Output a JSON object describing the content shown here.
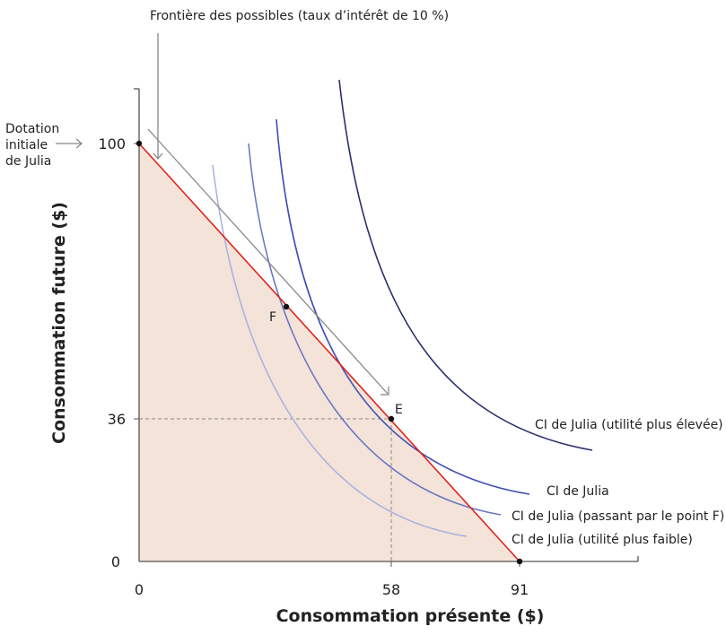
{
  "annotations": {
    "frontier": "Frontière des possibles (taux d’intérêt de 10 %)",
    "endowment": [
      "Dotation",
      "initiale",
      "de Julia"
    ],
    "point_f": "F",
    "point_e": "E",
    "ic_high": "CI de Julia (utilité plus élevée)",
    "ic_tangent": "CI de Julia",
    "ic_f": "CI de Julia (passant par le point F)",
    "ic_low": "CI de Julia (utilité plus faible)"
  },
  "axes": {
    "x_label": "Consommation présente ($)",
    "y_label": "Consommation future ($)",
    "x_ticks": [
      "0",
      "58",
      "91"
    ],
    "y_ticks": [
      "0",
      "36",
      "100"
    ]
  },
  "colors": {
    "budget_line": "#e0241b",
    "feasible_fill": "#f3e3d9",
    "ic_low": "#a6b0e0",
    "ic_f": "#6674c4",
    "ic_tangent": "#3f4fb5",
    "ic_high": "#2a2f6e"
  }
}
